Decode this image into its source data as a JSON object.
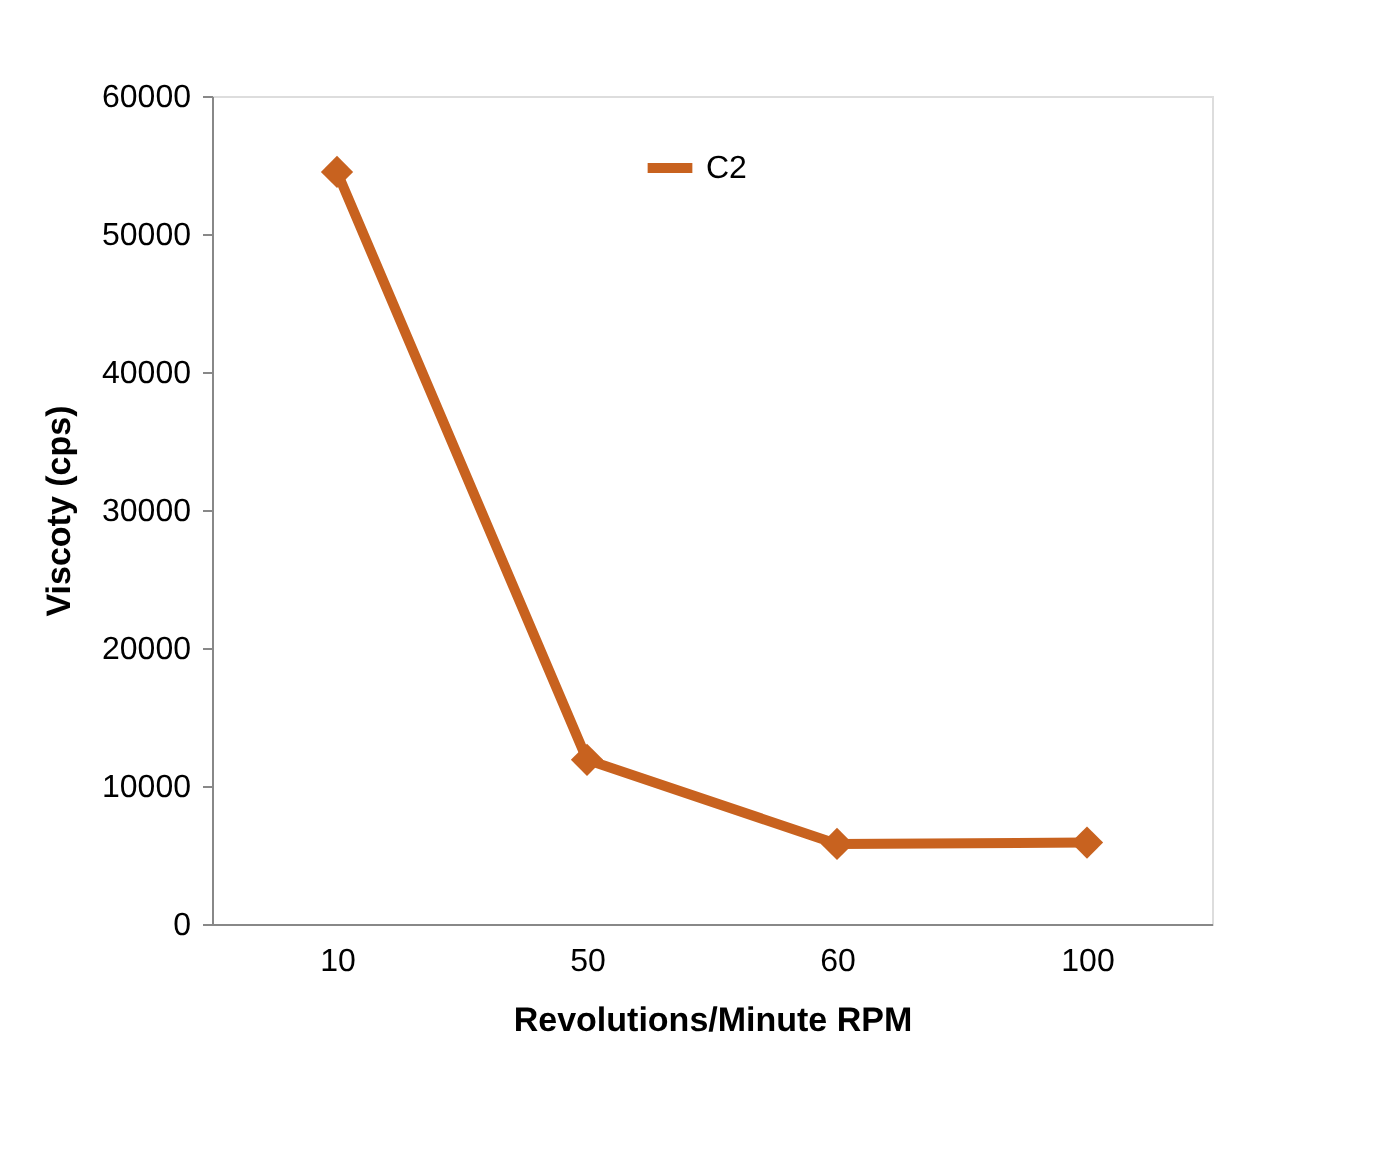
{
  "chart_data": {
    "type": "line",
    "xlabel": "Revolutions/Minute RPM",
    "ylabel": "Viscoty (cps)",
    "categories": [
      "10",
      "50",
      "60",
      "100"
    ],
    "series": [
      {
        "name": "C2",
        "color": "#c8621f",
        "values": [
          54500,
          11900,
          5800,
          5900
        ]
      }
    ],
    "ylim": [
      0,
      60000
    ],
    "yticks": [
      0,
      10000,
      20000,
      30000,
      40000,
      50000,
      60000
    ],
    "grid": false,
    "legend": "top",
    "marker": "diamond",
    "line_style": "solid"
  }
}
